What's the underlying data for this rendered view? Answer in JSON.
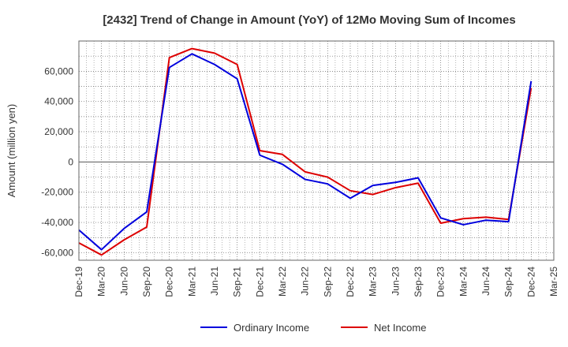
{
  "chart_data": {
    "type": "line",
    "title": "[2432]  Trend of Change in Amount (YoY) of 12Mo Moving Sum of Incomes",
    "ylabel": "Amount (million yen)",
    "xlabel": "",
    "ylim": [
      -65000,
      80000
    ],
    "yticks": [
      -60000,
      -40000,
      -20000,
      0,
      20000,
      40000,
      60000
    ],
    "ytick_labels": [
      "-60,000",
      "-40,000",
      "-20,000",
      "0",
      "20,000",
      "40,000",
      "60,000"
    ],
    "grid": true,
    "legend_position": "bottom-center",
    "x_tick_labels": [
      "Dec-19",
      "Mar-20",
      "Jun-20",
      "Sep-20",
      "Dec-20",
      "Mar-21",
      "Jun-21",
      "Sep-21",
      "Dec-21",
      "Mar-22",
      "Jun-22",
      "Sep-22",
      "Dec-22",
      "Mar-23",
      "Jun-23",
      "Sep-23",
      "Dec-23",
      "Mar-24",
      "Jun-24",
      "Sep-24",
      "Dec-24",
      "Mar-25"
    ],
    "x": [
      "Dec-19",
      "Mar-20",
      "Jun-20",
      "Sep-20",
      "Dec-20",
      "Mar-21",
      "Jun-21",
      "Sep-21",
      "Dec-21",
      "Mar-22",
      "Jun-22",
      "Sep-22",
      "Dec-22",
      "Mar-23",
      "Jun-23",
      "Sep-23",
      "Dec-23",
      "Mar-24",
      "Jun-24",
      "Sep-24",
      "Dec-24"
    ],
    "series": [
      {
        "name": "Ordinary Income",
        "color": "#0000dd",
        "values": [
          -45000,
          -58000,
          -44000,
          -33000,
          62500,
          71500,
          64500,
          55000,
          4500,
          -1500,
          -11500,
          -14500,
          -24000,
          -15500,
          -13500,
          -10500,
          -37000,
          -41500,
          -38500,
          -39500,
          53500
        ]
      },
      {
        "name": "Net Income",
        "color": "#dd0000",
        "values": [
          -53500,
          -61500,
          -51500,
          -43000,
          69000,
          75000,
          72000,
          64500,
          7500,
          5000,
          -6500,
          -10000,
          -19000,
          -21500,
          -17000,
          -14000,
          -40500,
          -37500,
          -36500,
          -38000,
          49000
        ]
      }
    ]
  }
}
